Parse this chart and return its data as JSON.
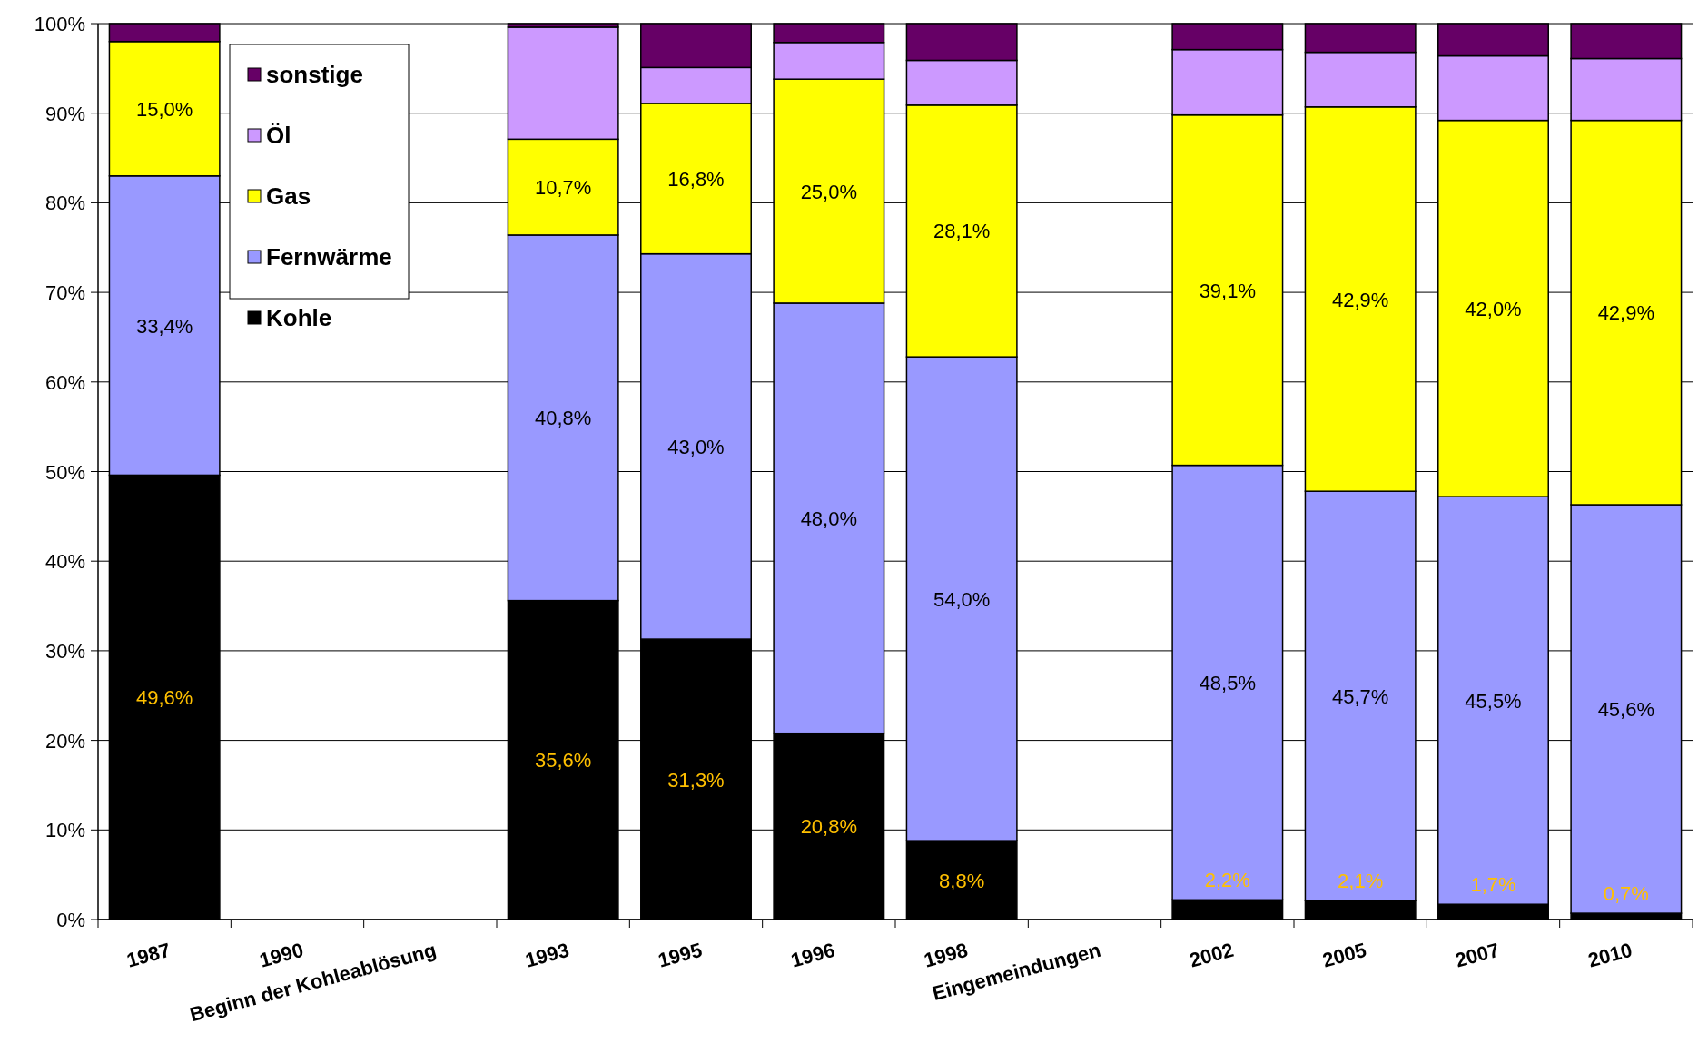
{
  "chart_data": {
    "type": "bar",
    "stacked": true,
    "categories": [
      "1987",
      "1990",
      "Beginn der Kohleablösung",
      "1993",
      "1995",
      "1996",
      "1998",
      "Eingemeindungen",
      "2002",
      "2005",
      "2007",
      "2010"
    ],
    "series": [
      {
        "name": "Kohle",
        "color": "#000000",
        "values": [
          49.6,
          null,
          null,
          35.6,
          31.3,
          20.8,
          8.8,
          null,
          2.2,
          2.1,
          1.7,
          0.7
        ],
        "value_labels": [
          "49,6%",
          null,
          null,
          "35,6%",
          "31,3%",
          "20,8%",
          "8,8%",
          null,
          "2,2%",
          "2,1%",
          "1,7%",
          "0,7%"
        ]
      },
      {
        "name": "Fernwärme",
        "color": "#9999ff",
        "values": [
          33.4,
          null,
          null,
          40.8,
          43.0,
          48.0,
          54.0,
          null,
          48.5,
          45.7,
          45.5,
          45.6
        ],
        "value_labels": [
          "33,4%",
          null,
          null,
          "40,8%",
          "43,0%",
          "48,0%",
          "54,0%",
          null,
          "48,5%",
          "45,7%",
          "45,5%",
          "45,6%"
        ]
      },
      {
        "name": "Gas",
        "color": "#ffff00",
        "values": [
          15.0,
          null,
          null,
          10.7,
          16.8,
          25.0,
          28.1,
          null,
          39.1,
          42.9,
          42.0,
          42.9
        ],
        "value_labels": [
          "15,0%",
          null,
          null,
          "10,7%",
          "16,8%",
          "25,0%",
          "28,1%",
          null,
          "39,1%",
          "42,9%",
          "42,0%",
          "42,9%"
        ]
      },
      {
        "name": "Öl",
        "color": "#cc99ff",
        "values": [
          0,
          null,
          null,
          12.5,
          4.0,
          4.1,
          5.0,
          null,
          7.3,
          6.1,
          7.2,
          6.9
        ]
      },
      {
        "name": "sonstige",
        "color": "#660066",
        "values": [
          2.0,
          null,
          null,
          0.4,
          4.9,
          2.1,
          4.1,
          null,
          2.9,
          3.2,
          3.6,
          3.9
        ]
      }
    ],
    "ylim": [
      0,
      100
    ],
    "yticks": [
      {
        "value": 0,
        "label": "0%"
      },
      {
        "value": 10,
        "label": "10%"
      },
      {
        "value": 20,
        "label": "20%"
      },
      {
        "value": 30,
        "label": "30%"
      },
      {
        "value": 40,
        "label": "40%"
      },
      {
        "value": 50,
        "label": "50%"
      },
      {
        "value": 60,
        "label": "60%"
      },
      {
        "value": 70,
        "label": "70%"
      },
      {
        "value": 80,
        "label": "80%"
      },
      {
        "value": 90,
        "label": "90%"
      },
      {
        "value": 100,
        "label": "100%"
      }
    ],
    "grid": "y",
    "legend": "top left"
  }
}
